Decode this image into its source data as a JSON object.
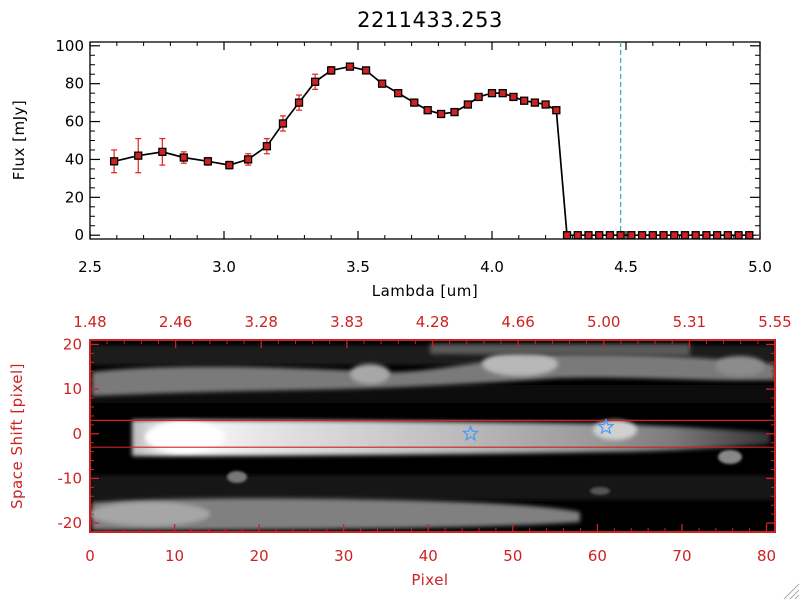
{
  "chart_data": [
    {
      "type": "line",
      "title": "2211433.253",
      "xlabel": "Lambda [um]",
      "ylabel": "Flux [mJy]",
      "xlim": [
        2.5,
        5.0
      ],
      "ylim": [
        -2,
        102
      ],
      "x_ticks": [
        "2.5",
        "3.0",
        "3.5",
        "4.0",
        "4.5",
        "5.0"
      ],
      "y_ticks": [
        "0",
        "20",
        "40",
        "60",
        "80",
        "100"
      ],
      "reference_line_x": 4.48,
      "colors": {
        "line": "#000000",
        "marker": "#cc2222",
        "error_bar": "#dd2222",
        "reference_line": "#33aabb",
        "zero_line": "#dd2222"
      },
      "series": [
        {
          "x": [
            2.59,
            2.68,
            2.77,
            2.85,
            2.94,
            3.02,
            3.09,
            3.16,
            3.22,
            3.28,
            3.34,
            3.4,
            3.47,
            3.53,
            3.59,
            3.65,
            3.71,
            3.76,
            3.81,
            3.86,
            3.91,
            3.95,
            4.0,
            4.04,
            4.08,
            4.12,
            4.16,
            4.2,
            4.24,
            4.28,
            4.32,
            4.36,
            4.4,
            4.44,
            4.48,
            4.52,
            4.56,
            4.6,
            4.64,
            4.68,
            4.72,
            4.76,
            4.8,
            4.84,
            4.88,
            4.92,
            4.96
          ],
          "y": [
            39,
            42,
            44,
            41,
            39,
            37,
            40,
            47,
            59,
            70,
            81,
            87,
            89,
            87,
            80,
            75,
            70,
            66,
            64,
            65,
            69,
            73,
            75,
            75,
            73,
            71,
            70,
            69,
            66,
            0,
            0,
            0,
            0,
            0,
            0,
            0,
            0,
            0,
            0,
            0,
            0,
            0,
            0,
            0,
            0,
            0,
            0
          ],
          "yerr": [
            6,
            9,
            7,
            3,
            2,
            2,
            3,
            4,
            4,
            4,
            4,
            2,
            1,
            1,
            1,
            1,
            1,
            1,
            1,
            1,
            1,
            1,
            1,
            1,
            1,
            1,
            1,
            1,
            1,
            0,
            0,
            0,
            0,
            0,
            0,
            0,
            0,
            0,
            0,
            0,
            0,
            0,
            0,
            0,
            0,
            0,
            0
          ]
        }
      ]
    },
    {
      "type": "heatmap",
      "xlabel": "Pixel",
      "ylabel": "Space Shift [pixel]",
      "xlim": [
        0,
        81
      ],
      "ylim": [
        -22,
        21
      ],
      "x_ticks": [
        "0",
        "10",
        "20",
        "30",
        "40",
        "50",
        "60",
        "70",
        "80"
      ],
      "y_ticks": [
        "-20",
        "-10",
        "0",
        "10",
        "20"
      ],
      "top_ticks": [
        "1.48",
        "2.46",
        "3.28",
        "3.83",
        "4.28",
        "4.66",
        "5.00",
        "5.31",
        "5.55"
      ],
      "extraction_lines_y": [
        3,
        -3
      ],
      "star_markers": [
        {
          "pixel": 45,
          "shift": 0
        },
        {
          "pixel": 61,
          "shift": 1.5
        }
      ],
      "colors": {
        "frame": "#cc2222",
        "star": "#4499ff",
        "extraction_line": "#cc2222"
      }
    }
  ]
}
